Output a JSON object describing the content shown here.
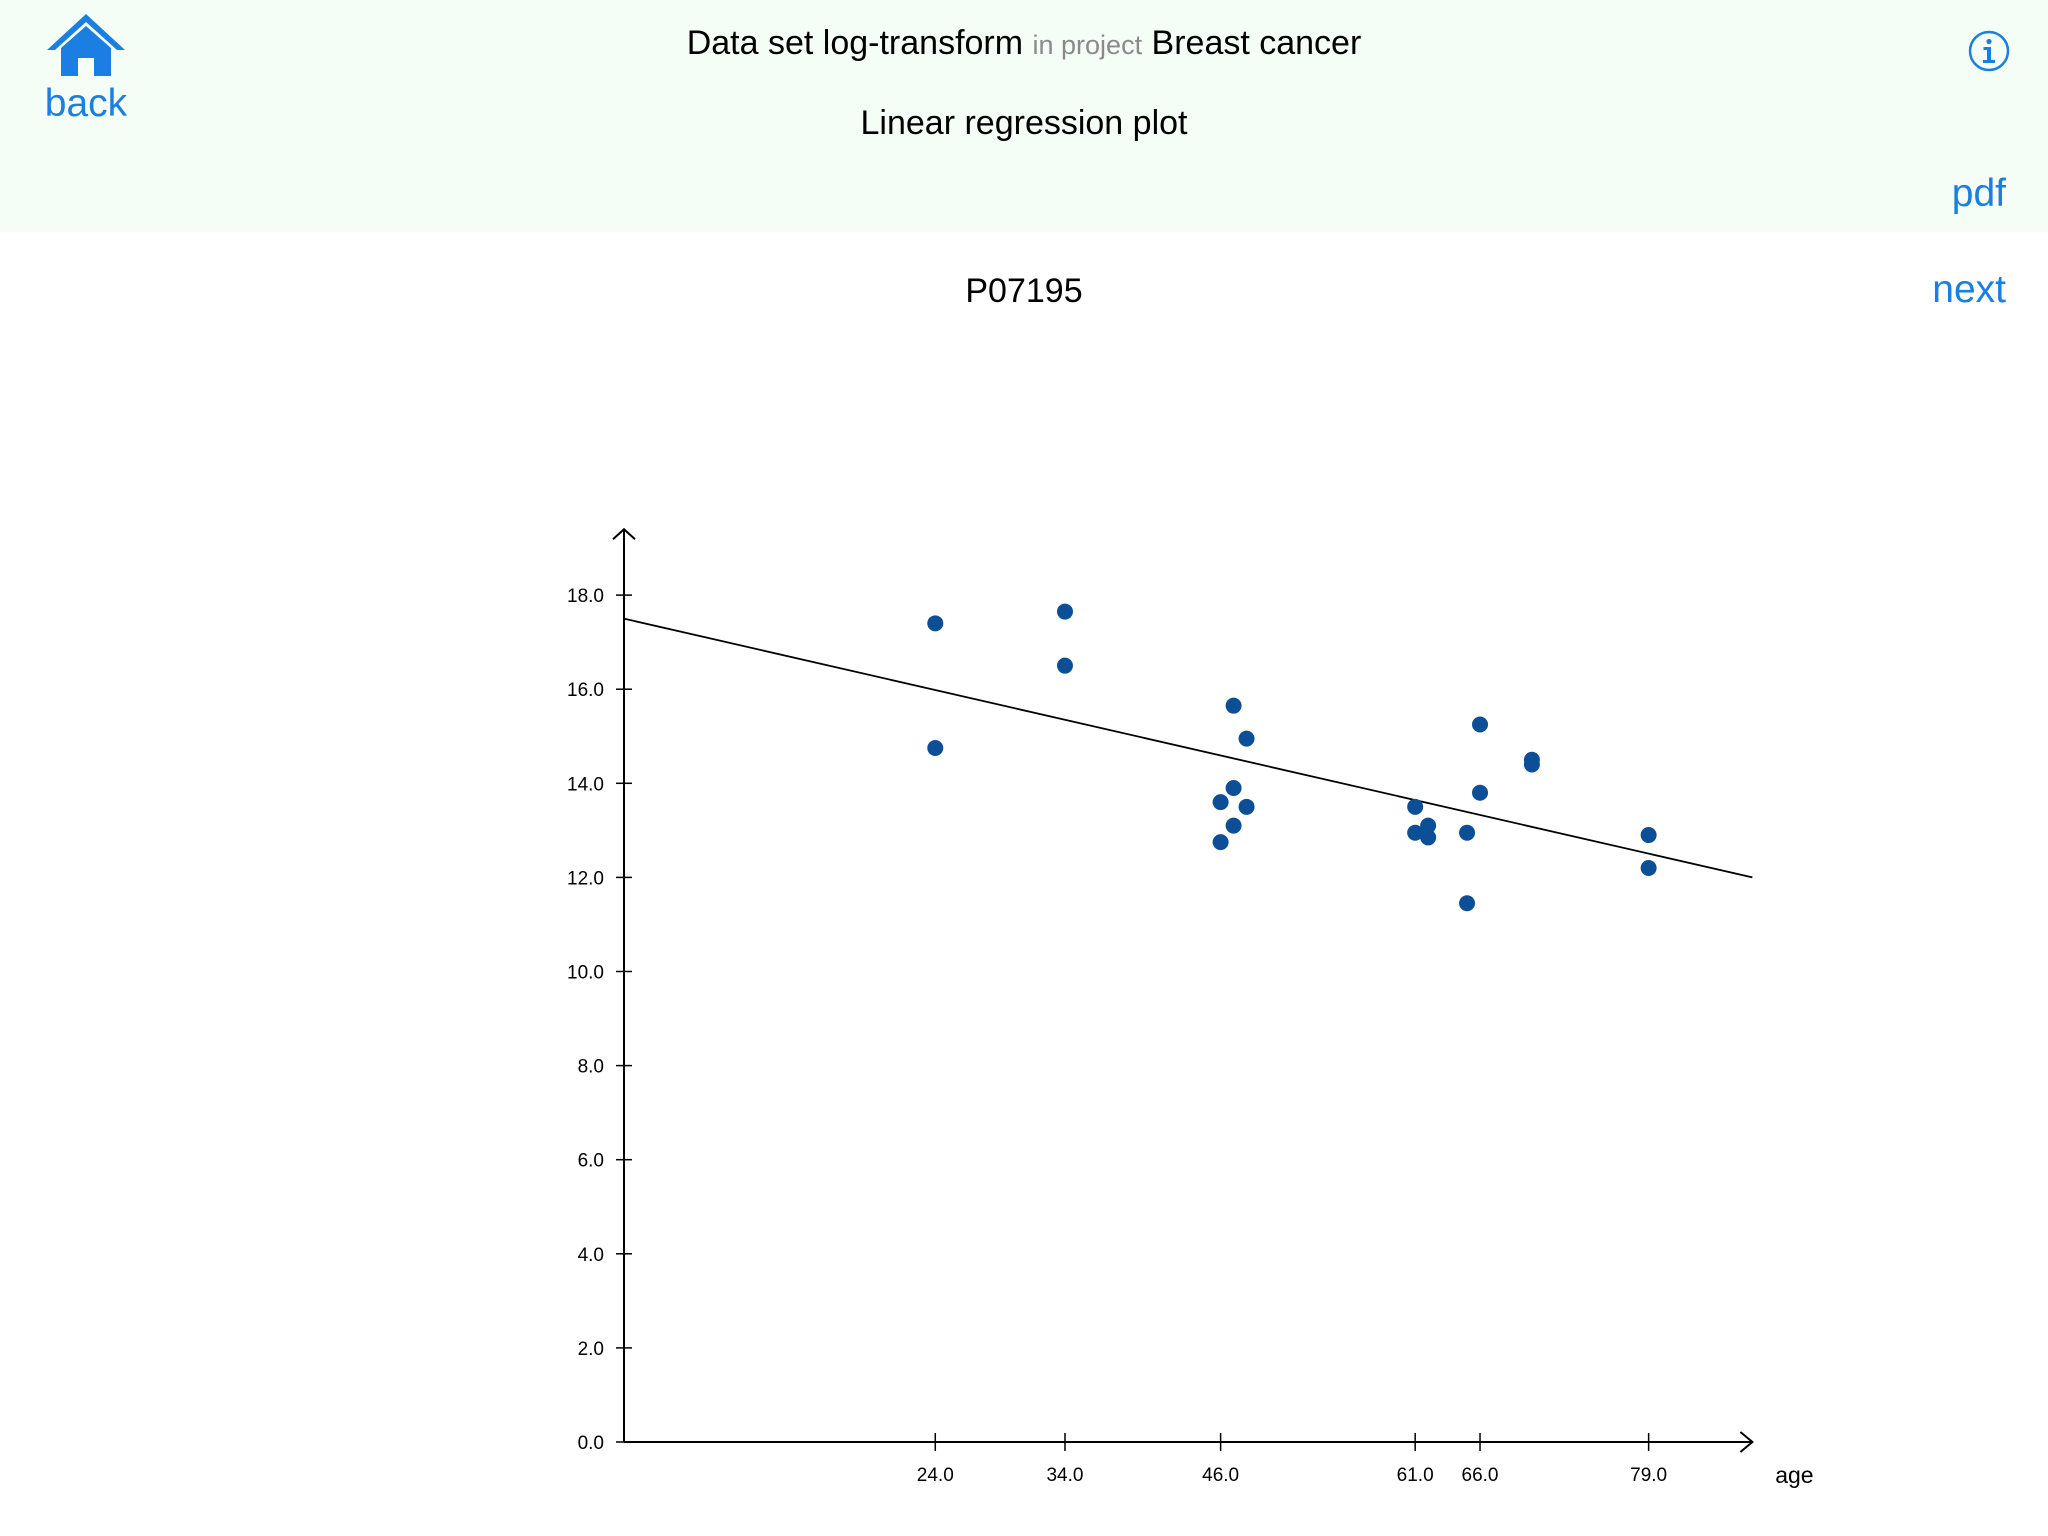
{
  "header": {
    "back_label": "back",
    "dataset_prefix": "Data set",
    "dataset_name": "log-transform",
    "in_project": "in project",
    "project_name": "Breast cancer",
    "subtitle": "Linear regression plot",
    "pdf_label": "pdf",
    "next_label": "next",
    "info_icon": "info-icon",
    "home_icon": "home-icon"
  },
  "colors": {
    "accent": "#1a7fe0",
    "point": "#0d4f96",
    "header_bg": "#f5fdf7"
  },
  "chart_data": {
    "type": "scatter",
    "title": "P07195",
    "xlabel": "age",
    "ylabel": "",
    "x_ticks": [
      24.0,
      34.0,
      46.0,
      61.0,
      66.0,
      79.0
    ],
    "y_ticks": [
      0.0,
      2.0,
      4.0,
      6.0,
      8.0,
      10.0,
      12.0,
      14.0,
      16.0,
      18.0
    ],
    "xlim": [
      0,
      87
    ],
    "ylim": [
      0,
      19.4
    ],
    "grid": false,
    "points": [
      {
        "x": 24,
        "y": 17.4
      },
      {
        "x": 24,
        "y": 14.75
      },
      {
        "x": 34,
        "y": 17.65
      },
      {
        "x": 34,
        "y": 16.5
      },
      {
        "x": 46,
        "y": 13.6
      },
      {
        "x": 46,
        "y": 12.75
      },
      {
        "x": 47,
        "y": 15.65
      },
      {
        "x": 47,
        "y": 13.9
      },
      {
        "x": 47,
        "y": 13.1
      },
      {
        "x": 48,
        "y": 14.95
      },
      {
        "x": 48,
        "y": 13.5
      },
      {
        "x": 61,
        "y": 13.5
      },
      {
        "x": 61,
        "y": 12.95
      },
      {
        "x": 62,
        "y": 13.1
      },
      {
        "x": 62,
        "y": 12.85
      },
      {
        "x": 65,
        "y": 12.95
      },
      {
        "x": 65,
        "y": 11.45
      },
      {
        "x": 66,
        "y": 15.25
      },
      {
        "x": 66,
        "y": 13.8
      },
      {
        "x": 70,
        "y": 14.5
      },
      {
        "x": 70,
        "y": 14.4
      },
      {
        "x": 79,
        "y": 12.9
      },
      {
        "x": 79,
        "y": 12.2
      }
    ],
    "regression_line": {
      "x": [
        0,
        87
      ],
      "y": [
        17.5,
        12.0
      ]
    }
  }
}
